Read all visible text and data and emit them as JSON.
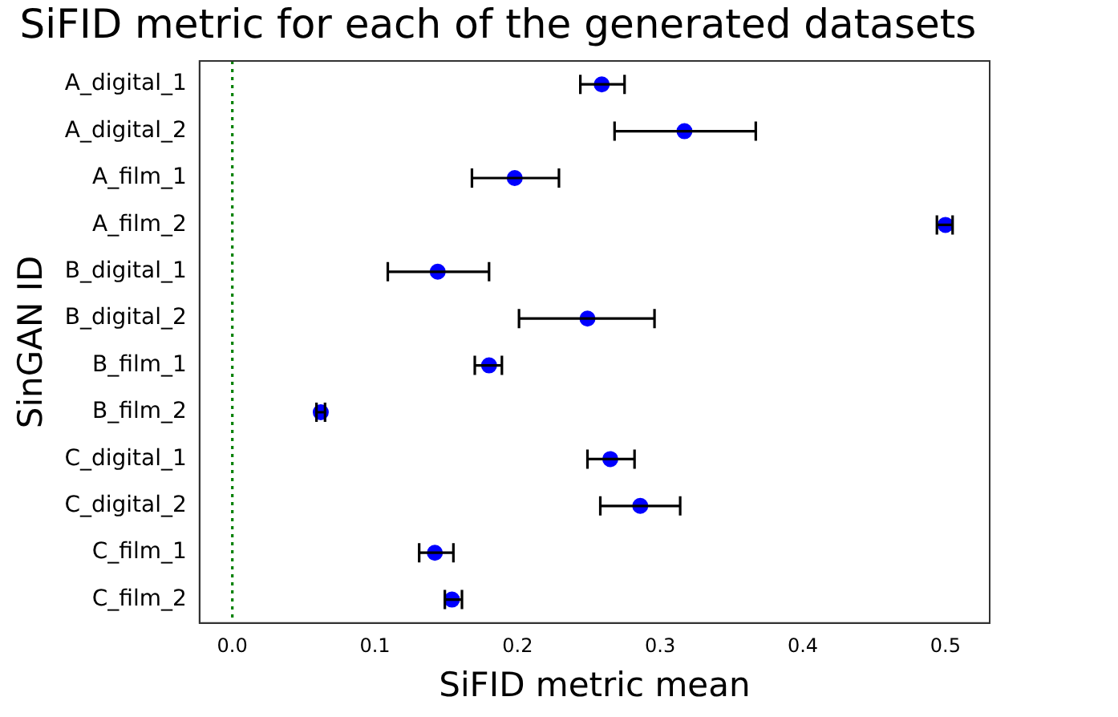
{
  "chart_data": {
    "type": "scatter",
    "title": "SiFID metric for each of the generated datasets",
    "xlabel": "SiFID metric mean",
    "ylabel": "SinGAN ID",
    "categories": [
      "A_digital_1",
      "A_digital_2",
      "A_film_1",
      "A_film_2",
      "B_digital_1",
      "B_digital_2",
      "B_film_1",
      "B_film_2",
      "C_digital_1",
      "C_digital_2",
      "C_film_1",
      "C_film_2"
    ],
    "orientation": "horizontal",
    "series": [
      {
        "color": "#0000ff",
        "values": [
          0.259,
          0.317,
          0.198,
          0.5,
          0.144,
          0.249,
          0.18,
          0.062,
          0.265,
          0.286,
          0.142,
          0.154
        ],
        "errors": [
          [
            0.244,
            0.275
          ],
          [
            0.268,
            0.367
          ],
          [
            0.168,
            0.229
          ],
          [
            0.494,
            0.505
          ],
          [
            0.109,
            0.18
          ],
          [
            0.201,
            0.296
          ],
          [
            0.17,
            0.189
          ],
          [
            0.059,
            0.065
          ],
          [
            0.249,
            0.282
          ],
          [
            0.258,
            0.314
          ],
          [
            0.131,
            0.155
          ],
          [
            0.149,
            0.161
          ]
        ]
      }
    ],
    "xlim": [
      -0.023,
      0.531
    ],
    "xticks": [
      {
        "value": 0,
        "label": "0.0"
      },
      {
        "value": 0.1,
        "label": "0.1"
      },
      {
        "value": 0.2,
        "label": "0.2"
      },
      {
        "value": 0.3,
        "label": "0.3"
      },
      {
        "value": 0.4,
        "label": "0.4"
      },
      {
        "value": 0.5,
        "label": "0.5"
      }
    ],
    "ref_lines": [
      {
        "axis": "x",
        "value": 0,
        "color": "#008000",
        "line_style": "dotted"
      }
    ],
    "grid": false,
    "legend": false,
    "marker": "circle"
  }
}
